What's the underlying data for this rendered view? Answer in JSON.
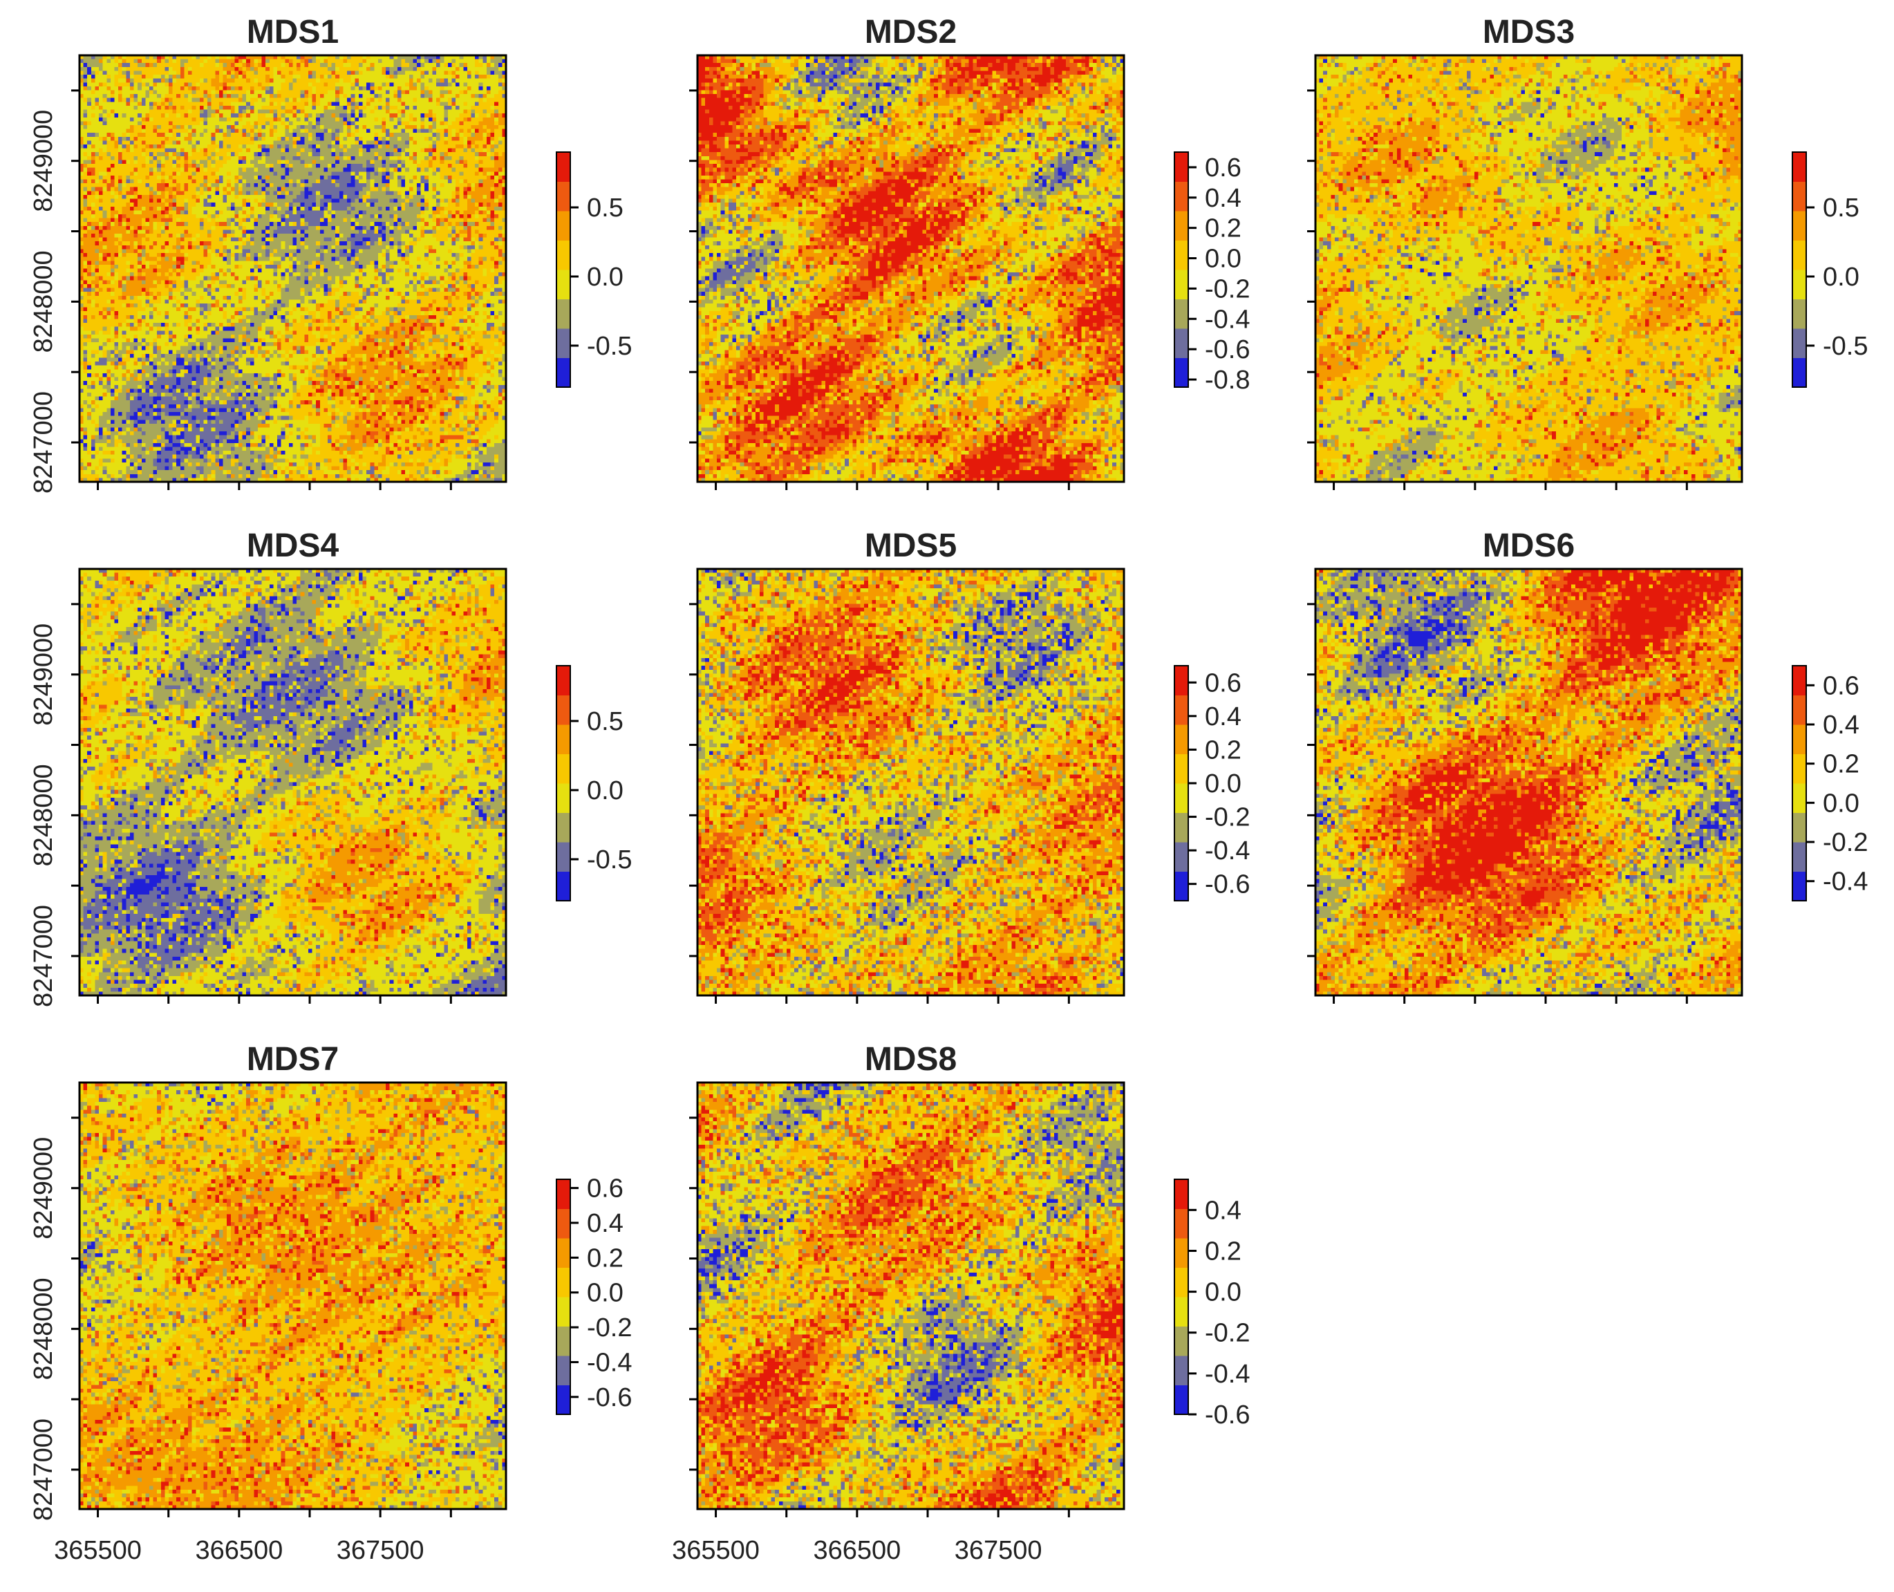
{
  "chart_data": {
    "type": "heatmap",
    "layout": {
      "rows": 3,
      "cols": 3
    },
    "x_axis": {
      "ticks": [
        365500,
        366500,
        367500
      ],
      "tick_labels": [
        "365500",
        "366500",
        "367500"
      ],
      "range": [
        365370,
        368390
      ]
    },
    "y_axis": {
      "ticks": [
        8247000,
        8248000,
        8249000
      ],
      "tick_labels": [
        "8247000",
        "8248000",
        "8249000"
      ],
      "range": [
        8246720,
        8249750
      ]
    },
    "palette": [
      "#1f1fd8",
      "#6e6e9e",
      "#a8a85a",
      "#e6e010",
      "#f8c800",
      "#f59a00",
      "#ee5a10",
      "#e41a0a"
    ],
    "panels": [
      {
        "title": "MDS1",
        "legend": {
          "range": [
            -0.8,
            0.9
          ],
          "ticks": [
            -0.5,
            0.0,
            0.5
          ],
          "tick_labels": [
            "-0.5",
            "0.0",
            "0.5"
          ]
        },
        "base": 3.2,
        "spread": 1.8,
        "speckle": 0.45,
        "seed": 11,
        "show_y": true,
        "show_x": false
      },
      {
        "title": "MDS2",
        "legend": {
          "range": [
            -0.85,
            0.7
          ],
          "ticks": [
            -0.8,
            -0.6,
            -0.4,
            -0.2,
            0.0,
            0.2,
            0.4,
            0.6
          ],
          "tick_labels": [
            "-0.8",
            "-0.6",
            "-0.4",
            "-0.2",
            "0.0",
            "0.2",
            "0.4",
            "0.6"
          ]
        },
        "base": 4.6,
        "spread": 3.4,
        "speckle": 0.5,
        "seed": 23,
        "show_y": false,
        "show_x": false
      },
      {
        "title": "MDS3",
        "legend": {
          "range": [
            -0.8,
            0.9
          ],
          "ticks": [
            -0.5,
            0.0,
            0.5
          ],
          "tick_labels": [
            "-0.5",
            "0.0",
            "0.5"
          ]
        },
        "base": 3.6,
        "spread": 1.6,
        "speckle": 0.35,
        "seed": 37,
        "show_y": false,
        "show_x": false
      },
      {
        "title": "MDS4",
        "legend": {
          "range": [
            -0.8,
            0.9
          ],
          "ticks": [
            -0.5,
            0.0,
            0.5
          ],
          "tick_labels": [
            "-0.5",
            "0.0",
            "0.5"
          ]
        },
        "base": 2.8,
        "spread": 1.9,
        "speckle": 0.4,
        "seed": 41,
        "show_y": true,
        "show_x": false
      },
      {
        "title": "MDS5",
        "legend": {
          "range": [
            -0.7,
            0.7
          ],
          "ticks": [
            -0.6,
            -0.4,
            -0.2,
            0.0,
            0.2,
            0.4,
            0.6
          ],
          "tick_labels": [
            "-0.6",
            "-0.4",
            "-0.2",
            "0.0",
            "0.2",
            "0.4",
            "0.6"
          ]
        },
        "base": 3.9,
        "spread": 2.3,
        "speckle": 0.6,
        "seed": 53,
        "show_y": false,
        "show_x": false
      },
      {
        "title": "MDS6",
        "legend": {
          "range": [
            -0.5,
            0.7
          ],
          "ticks": [
            -0.4,
            -0.2,
            0.0,
            0.2,
            0.4,
            0.6
          ],
          "tick_labels": [
            "-0.4",
            "-0.2",
            "0.0",
            "0.2",
            "0.4",
            "0.6"
          ]
        },
        "base": 4.2,
        "spread": 3.0,
        "speckle": 0.55,
        "seed": 67,
        "show_y": false,
        "show_x": false
      },
      {
        "title": "MDS7",
        "legend": {
          "range": [
            -0.7,
            0.65
          ],
          "ticks": [
            -0.6,
            -0.4,
            -0.2,
            0.0,
            0.2,
            0.4,
            0.6
          ],
          "tick_labels": [
            "-0.6",
            "-0.4",
            "-0.2",
            "0.0",
            "0.2",
            "0.4",
            "0.6"
          ]
        },
        "base": 4.0,
        "spread": 1.4,
        "speckle": 0.45,
        "seed": 71,
        "show_y": true,
        "show_x": true
      },
      {
        "title": "MDS8",
        "legend": {
          "range": [
            -0.6,
            0.55
          ],
          "ticks": [
            -0.6,
            -0.4,
            -0.2,
            0.0,
            0.2,
            0.4
          ],
          "tick_labels": [
            "-0.6",
            "-0.4",
            "-0.2",
            "0.0",
            "0.2",
            "0.4"
          ]
        },
        "base": 3.9,
        "spread": 2.5,
        "speckle": 0.6,
        "seed": 83,
        "show_y": false,
        "show_x": true
      }
    ]
  }
}
